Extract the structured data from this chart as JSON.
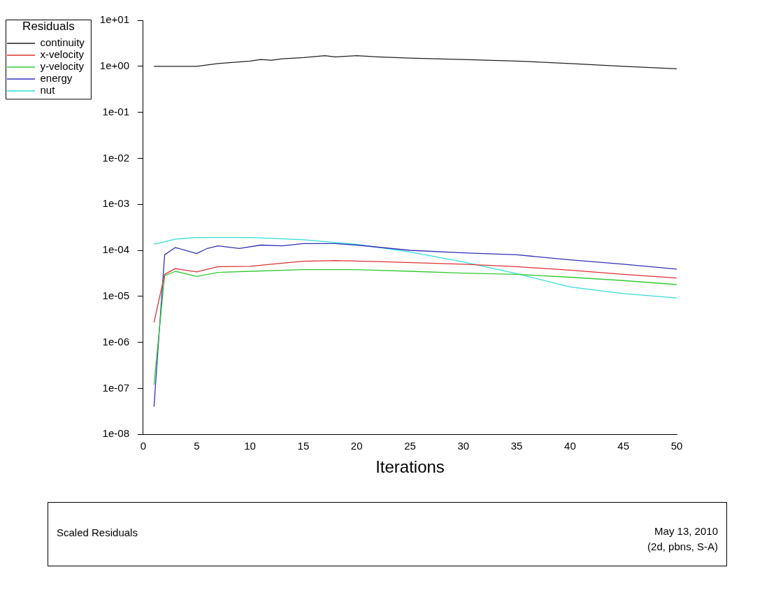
{
  "chart_data": {
    "type": "line",
    "xlabel": "Iterations",
    "legend_title": "Residuals",
    "legend": "top left",
    "grid": false,
    "log": "y",
    "marker": "none",
    "line_style": "solid",
    "xlim": [
      0,
      50
    ],
    "xticks": [
      0,
      5,
      10,
      15,
      20,
      25,
      30,
      35,
      40,
      45,
      50
    ],
    "ylim": [
      1e-08,
      10
    ],
    "yticks": [
      {
        "value": 1e-08,
        "label": "1e-08"
      },
      {
        "value": 1e-07,
        "label": "1e-07"
      },
      {
        "value": 1e-06,
        "label": "1e-06"
      },
      {
        "value": 1e-05,
        "label": "1e-05"
      },
      {
        "value": 0.0001,
        "label": "1e-04"
      },
      {
        "value": 0.001,
        "label": "1e-03"
      },
      {
        "value": 0.01,
        "label": "1e-02"
      },
      {
        "value": 0.1,
        "label": "1e-01"
      },
      {
        "value": 1,
        "label": "1e+00"
      },
      {
        "value": 10,
        "label": "1e+01"
      }
    ],
    "series": [
      {
        "name": "continuity",
        "color": "#222222",
        "x": [
          1,
          5,
          7,
          10,
          11,
          12,
          13,
          15,
          17,
          18,
          20,
          22,
          25,
          30,
          35,
          40,
          45,
          50
        ],
        "values": [
          1,
          1,
          1.15,
          1.3,
          1.4,
          1.35,
          1.45,
          1.55,
          1.7,
          1.6,
          1.7,
          1.6,
          1.5,
          1.4,
          1.3,
          1.15,
          1.0,
          0.88
        ]
      },
      {
        "name": "x-velocity",
        "color": "#dd3333",
        "x": [
          1,
          2,
          3,
          5,
          7,
          10,
          12,
          15,
          18,
          22,
          30,
          35,
          40,
          45,
          50
        ],
        "values": [
          2.7e-06,
          3e-05,
          4e-05,
          3.4e-05,
          4.4e-05,
          4.5e-05,
          5e-05,
          5.8e-05,
          6e-05,
          5.7e-05,
          5e-05,
          4.4e-05,
          3.7e-05,
          3e-05,
          2.5e-05
        ]
      },
      {
        "name": "y-velocity",
        "color": "#33cc33",
        "x": [
          1,
          2,
          3,
          5,
          7,
          10,
          15,
          20,
          25,
          30,
          35,
          40,
          45,
          50
        ],
        "values": [
          1.2e-07,
          2.8e-05,
          3.5e-05,
          2.7e-05,
          3.3e-05,
          3.5e-05,
          3.8e-05,
          3.8e-05,
          3.5e-05,
          3.2e-05,
          3e-05,
          2.6e-05,
          2.2e-05,
          1.8e-05
        ]
      },
      {
        "name": "energy",
        "color": "#3333bb",
        "x": [
          1,
          2,
          3,
          5,
          6,
          7,
          9,
          11,
          13,
          15,
          18,
          20,
          25,
          30,
          35,
          40,
          45,
          50
        ],
        "values": [
          4e-08,
          8e-05,
          0.000115,
          8.5e-05,
          0.00011,
          0.000125,
          0.00011,
          0.00013,
          0.000125,
          0.00014,
          0.00014,
          0.00013,
          0.0001,
          8.8e-05,
          8e-05,
          6.2e-05,
          5e-05,
          3.9e-05
        ]
      },
      {
        "name": "nut",
        "color": "#33dddd",
        "x": [
          1,
          3,
          5,
          10,
          15,
          20,
          25,
          30,
          35,
          40,
          45,
          50
        ],
        "values": [
          0.000135,
          0.000175,
          0.00019,
          0.00019,
          0.00017,
          0.000135,
          9.2e-05,
          5.6e-05,
          3.1e-05,
          1.6e-05,
          1.15e-05,
          9.2e-06
        ]
      }
    ],
    "annotations": [
      "Scaled Residuals",
      "May 13, 2010",
      "(2d, pbns, S-A)"
    ]
  }
}
